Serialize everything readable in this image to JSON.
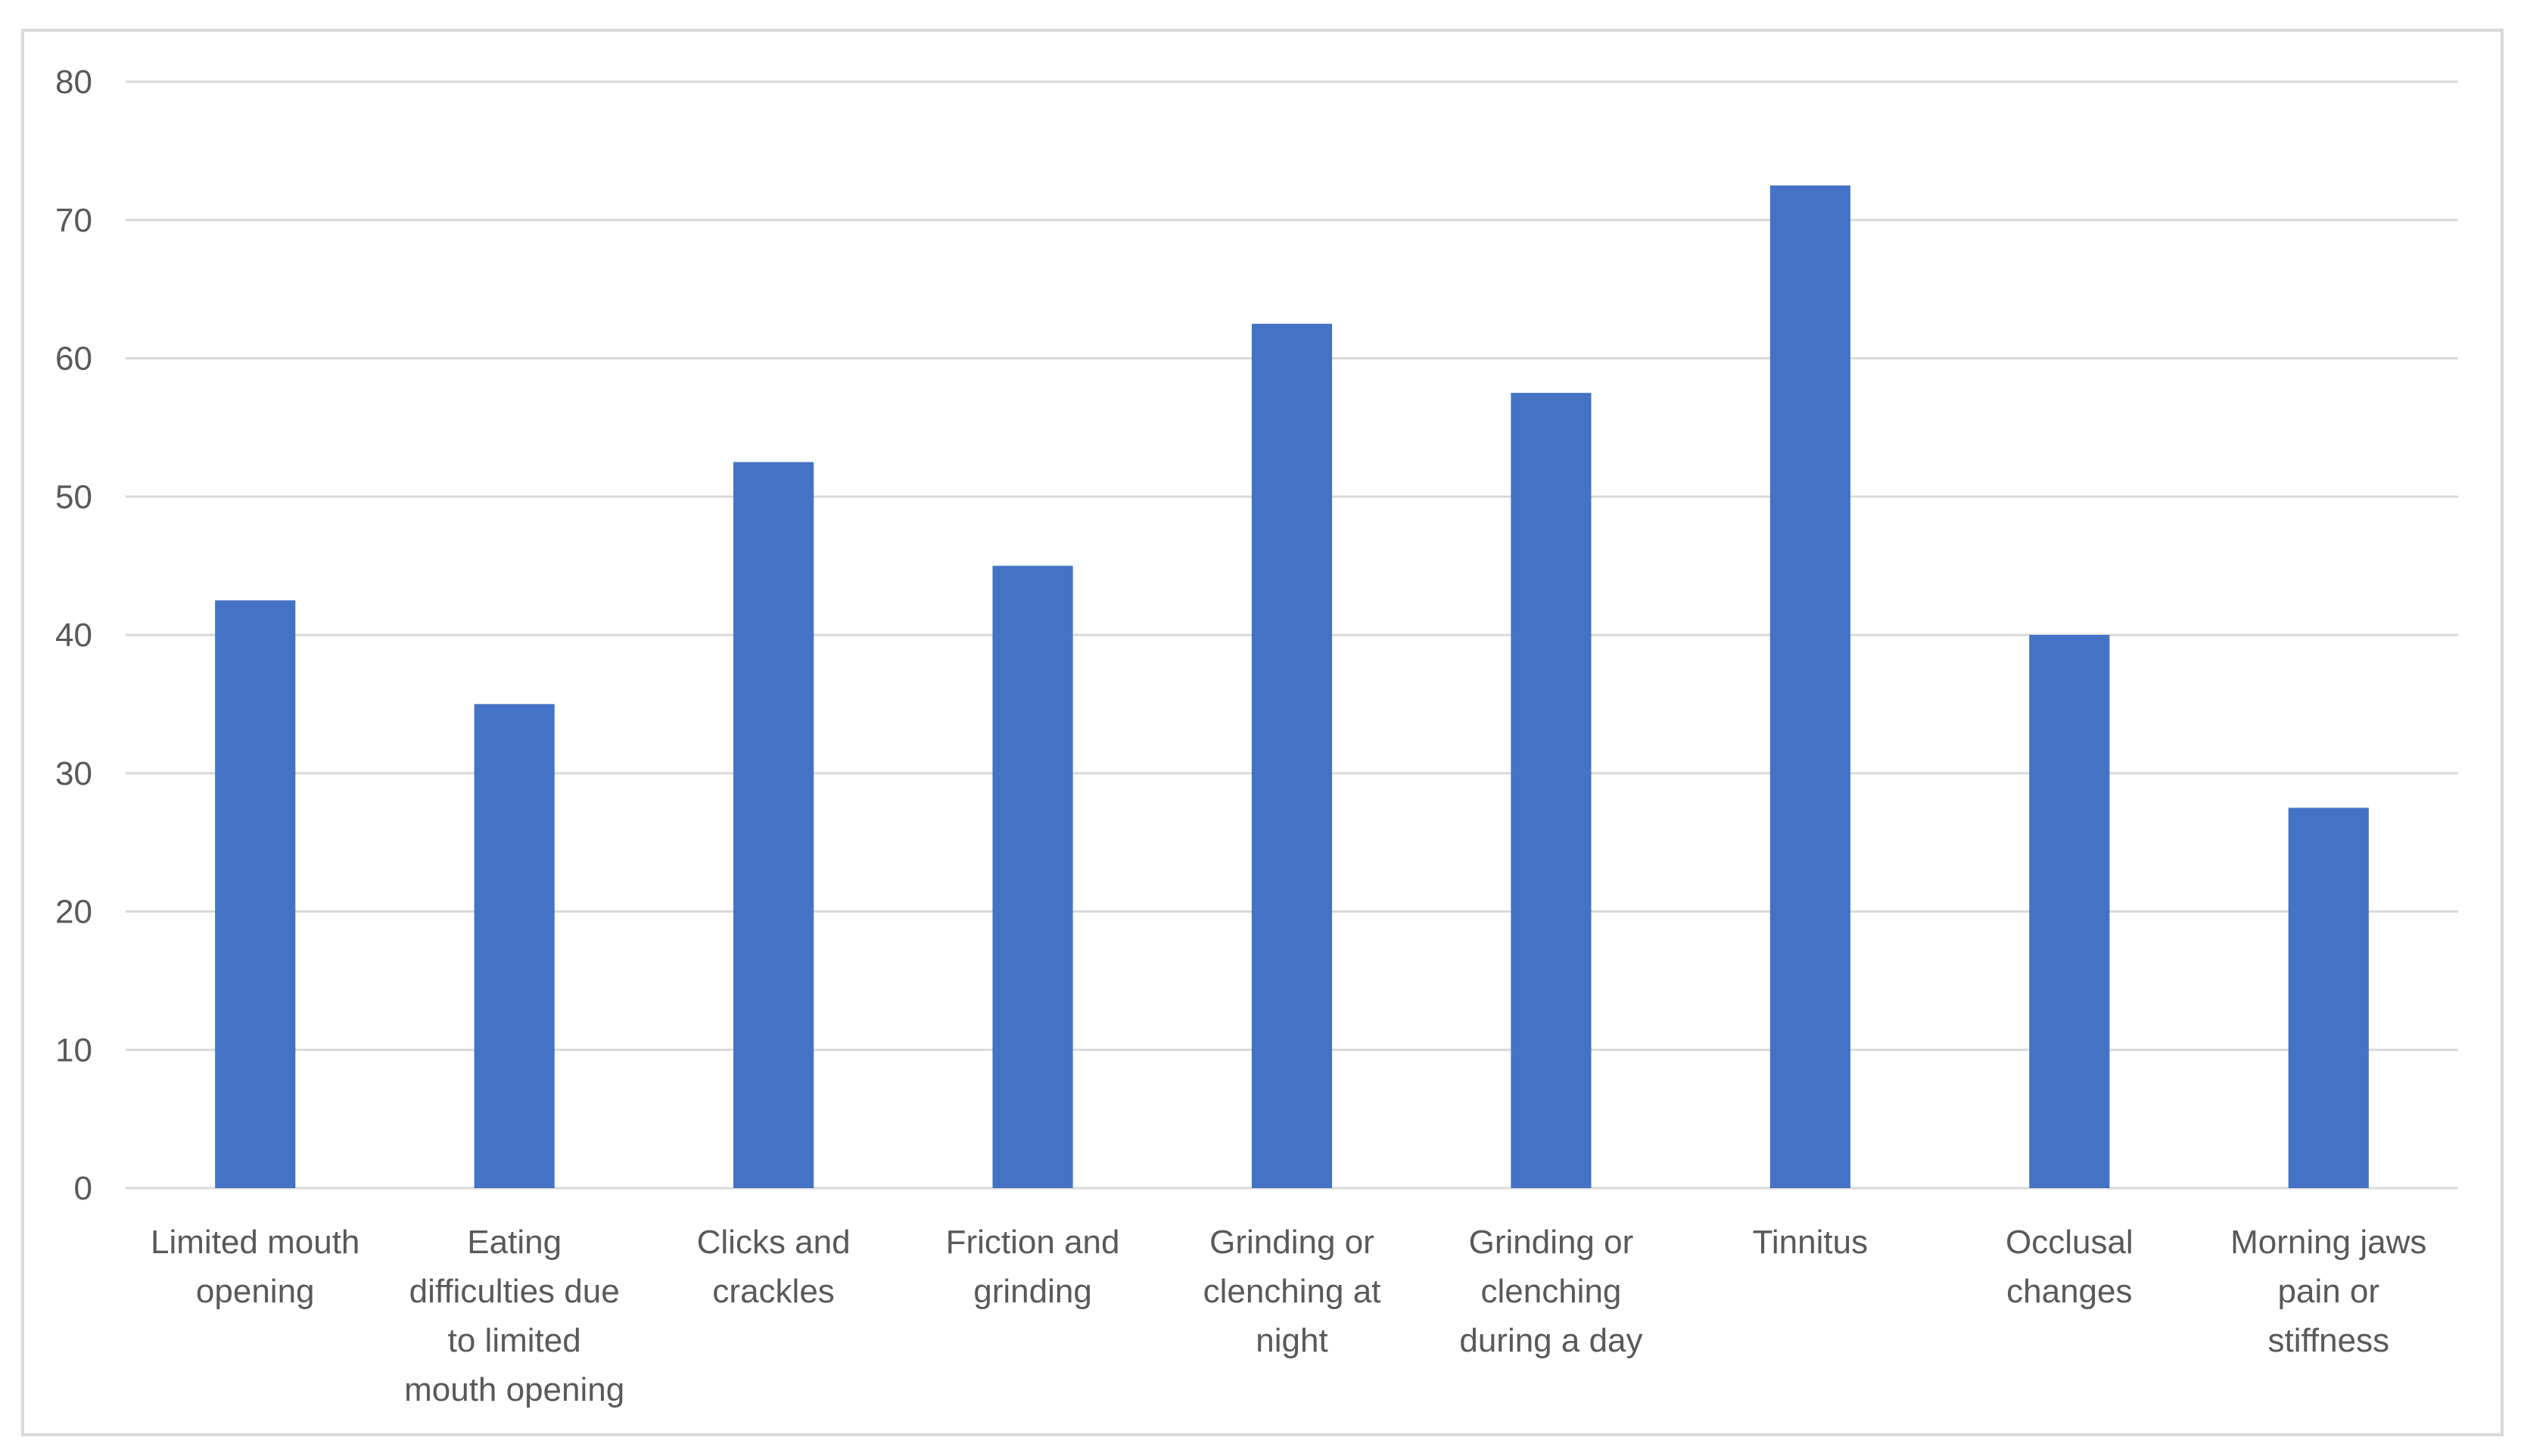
{
  "chart_data": {
    "type": "bar",
    "title": "",
    "xlabel": "",
    "ylabel": "",
    "ylim": [
      0,
      80
    ],
    "yticks": [
      0,
      10,
      20,
      30,
      40,
      50,
      60,
      70,
      80
    ],
    "grid": true,
    "legend": "none",
    "bar_color": "#4472C4",
    "categories": [
      [
        "Limited mouth",
        "opening"
      ],
      [
        "Eating",
        "difficulties due",
        "to limited",
        "mouth opening"
      ],
      [
        "Clicks and",
        "crackles"
      ],
      [
        "Friction and",
        "grinding"
      ],
      [
        "Grinding or",
        "clenching at",
        "night"
      ],
      [
        "Grinding or",
        "clenching",
        "during a day"
      ],
      [
        "Tinnitus"
      ],
      [
        "Occlusal",
        "changes"
      ],
      [
        "Morning jaws",
        "pain or",
        "stiffness"
      ]
    ],
    "values": [
      42.5,
      35,
      52.5,
      45,
      62.5,
      57.5,
      72.5,
      40,
      27.5
    ]
  }
}
